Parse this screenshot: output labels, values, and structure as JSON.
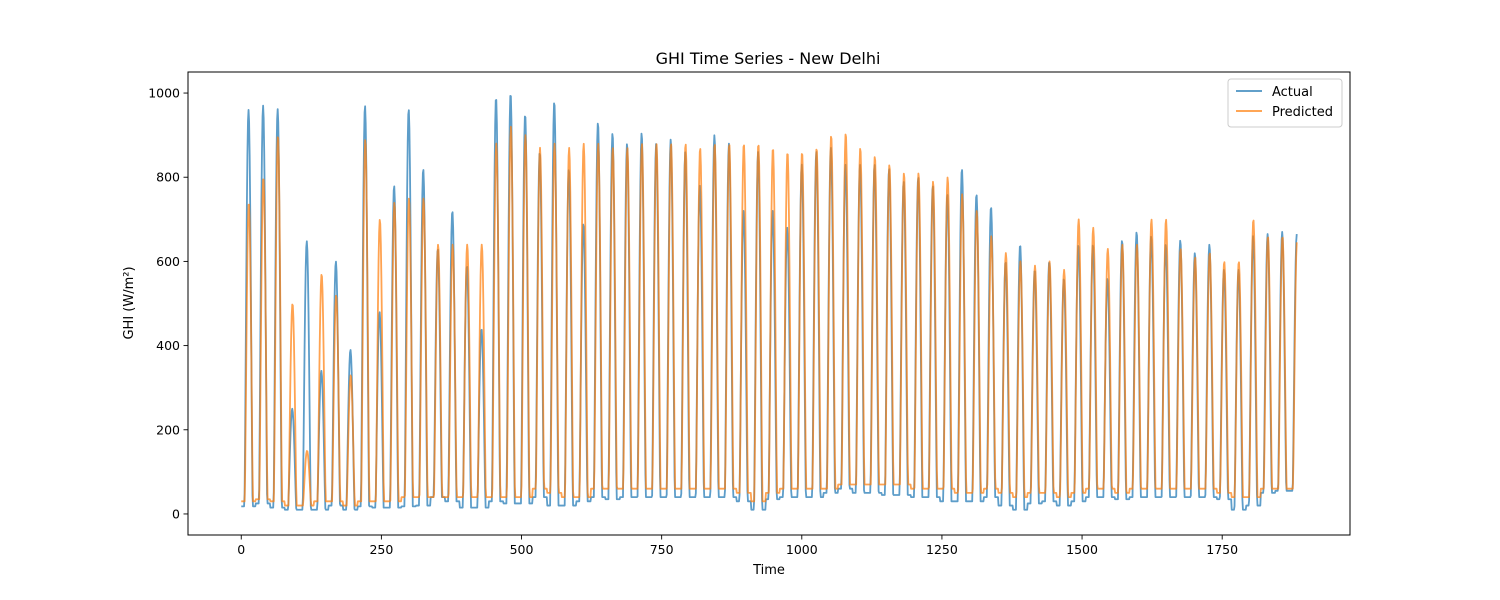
{
  "chart_data": {
    "type": "line",
    "title": "GHI Time Series - New Delhi",
    "xlabel": "Time",
    "ylabel": "GHI (W/m²)",
    "xlim": [
      -95,
      1978
    ],
    "ylim": [
      -50,
      1050
    ],
    "xticks": [
      0,
      250,
      500,
      750,
      1000,
      1250,
      1500,
      1750
    ],
    "yticks": [
      0,
      200,
      400,
      600,
      800,
      1000
    ],
    "grid": false,
    "legend_position": "top-right",
    "n_points": 1884,
    "series": [
      {
        "name": "Actual",
        "color": "#1f77b4",
        "day_peaks": [
          960,
          970,
          962,
          250,
          648,
          340,
          600,
          390,
          970,
          480,
          780,
          962,
          820,
          630,
          720,
          590,
          440,
          990,
          1000,
          950,
          860,
          980,
          820,
          690,
          930,
          905,
          880,
          905,
          880,
          890,
          860,
          780,
          900,
          880,
          720,
          860,
          720,
          680,
          830,
          860,
          870,
          830,
          830,
          830,
          820,
          790,
          800,
          780,
          760,
          820,
          760,
          730,
          600,
          640,
          580,
          600,
          560,
          640,
          640,
          560,
          650,
          670,
          660,
          640,
          650,
          620,
          640,
          580,
          580,
          660,
          665,
          670,
          665
        ],
        "night_lows": [
          18,
          25,
          15,
          10,
          10,
          10,
          20,
          10,
          18,
          15,
          15,
          18,
          20,
          40,
          30,
          15,
          15,
          30,
          25,
          25,
          40,
          20,
          20,
          30,
          40,
          35,
          40,
          40,
          40,
          40,
          40,
          40,
          40,
          40,
          30,
          10,
          35,
          40,
          40,
          40,
          50,
          60,
          50,
          50,
          45,
          45,
          40,
          40,
          30,
          30,
          30,
          40,
          20,
          10,
          25,
          30,
          20,
          30,
          40,
          40,
          35,
          40,
          40,
          40,
          40,
          40,
          40,
          35,
          10,
          20,
          50,
          55,
          55
        ]
      },
      {
        "name": "Predicted",
        "color": "#ff7f0e",
        "day_peaks": [
          740,
          800,
          900,
          500,
          150,
          570,
          520,
          330,
          890,
          700,
          740,
          750,
          750,
          640,
          640,
          640,
          640,
          880,
          920,
          900,
          870,
          880,
          870,
          880,
          880,
          870,
          870,
          880,
          880,
          880,
          880,
          870,
          880,
          880,
          880,
          880,
          870,
          860,
          860,
          870,
          900,
          905,
          870,
          850,
          830,
          810,
          810,
          790,
          800,
          760,
          720,
          660,
          620,
          600,
          590,
          600,
          580,
          700,
          680,
          630,
          640,
          640,
          700,
          700,
          630,
          610,
          620,
          600,
          600,
          700,
          660,
          660,
          650
        ],
        "night_lows": [
          30,
          35,
          30,
          20,
          20,
          30,
          30,
          20,
          30,
          30,
          30,
          40,
          40,
          40,
          40,
          40,
          40,
          40,
          40,
          40,
          60,
          50,
          40,
          40,
          60,
          60,
          60,
          60,
          60,
          60,
          60,
          60,
          60,
          60,
          50,
          30,
          50,
          60,
          60,
          60,
          60,
          70,
          70,
          70,
          70,
          70,
          60,
          60,
          60,
          50,
          50,
          60,
          50,
          40,
          50,
          50,
          40,
          50,
          60,
          60,
          50,
          60,
          60,
          60,
          60,
          60,
          60,
          50,
          40,
          40,
          60,
          60,
          60
        ]
      }
    ]
  }
}
